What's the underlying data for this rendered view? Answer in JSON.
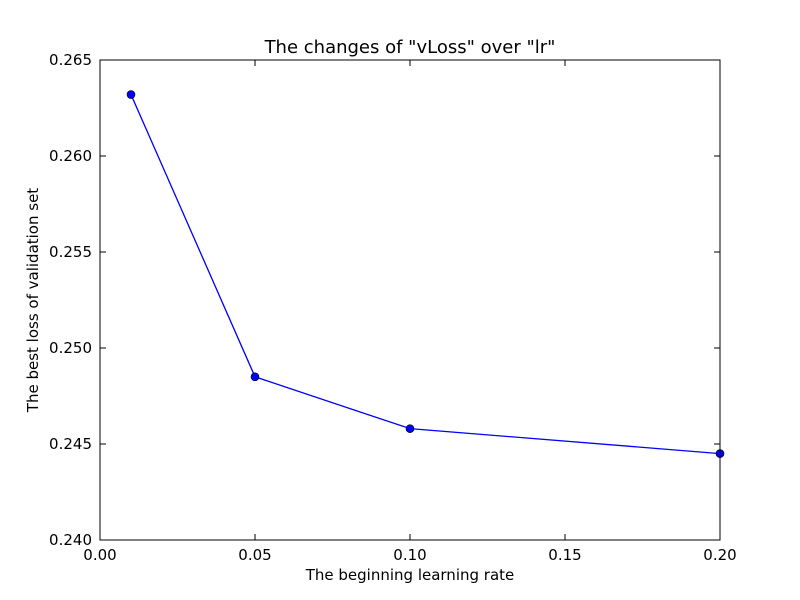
{
  "chart_data": {
    "type": "line",
    "title": "The changes of \"vLoss\" over \"lr\"",
    "xlabel": "The beginning learning rate",
    "ylabel": "The best loss of validation set",
    "xlim": [
      0.0,
      0.2
    ],
    "ylim": [
      0.24,
      0.265
    ],
    "xticks": [
      "0.00",
      "0.05",
      "0.10",
      "0.15",
      "0.20"
    ],
    "yticks": [
      "0.240",
      "0.245",
      "0.250",
      "0.255",
      "0.260",
      "0.265"
    ],
    "grid": false,
    "legend": false,
    "series": [
      {
        "color": "#0000ff",
        "marker": "circle",
        "x": [
          0.01,
          0.05,
          0.1,
          0.2
        ],
        "y": [
          0.2632,
          0.2485,
          0.2458,
          0.2445
        ]
      }
    ]
  }
}
